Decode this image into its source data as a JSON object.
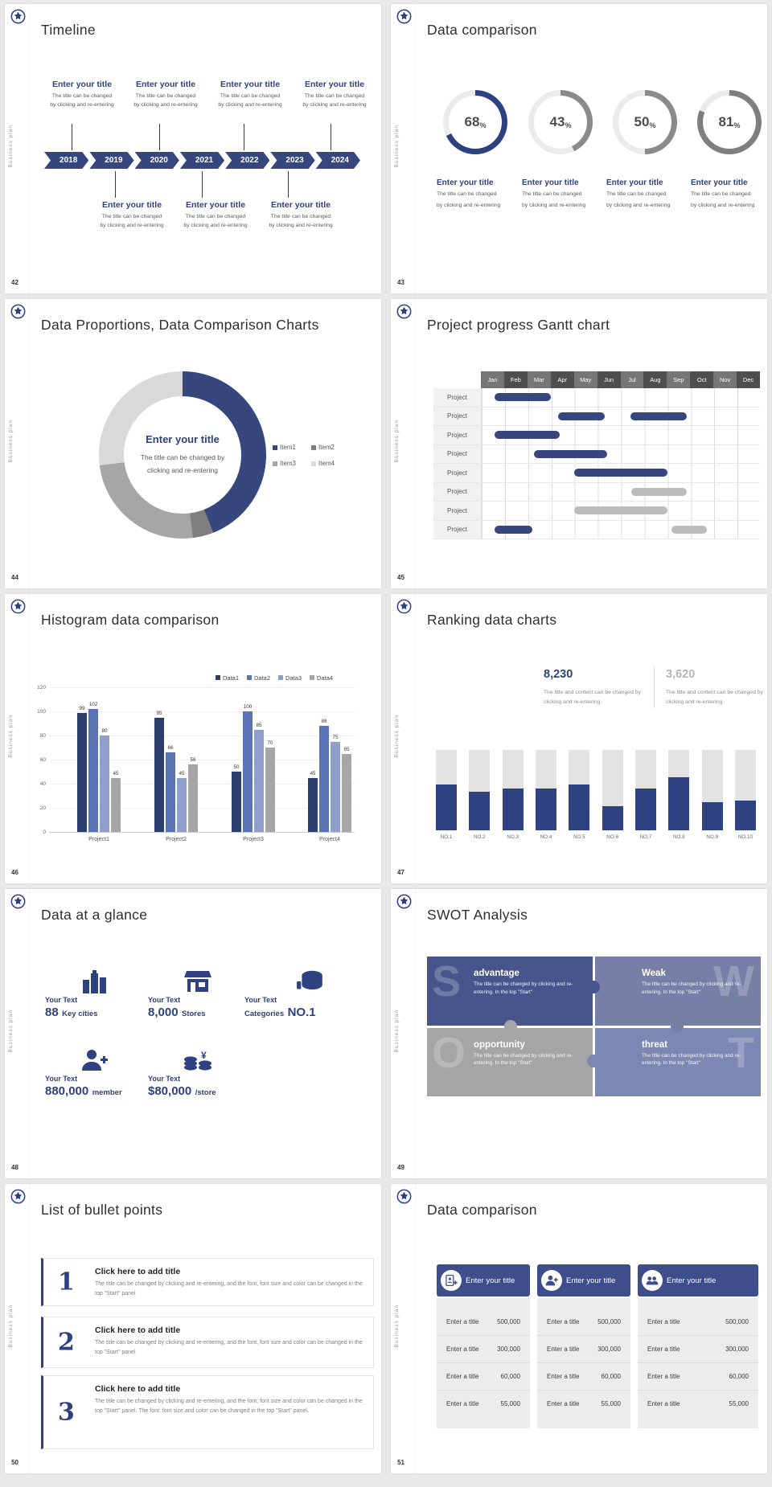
{
  "brand": {
    "vertical_label": "Business plan",
    "accent_color": "#2e4180",
    "logo_icon": "crest-badge-icon"
  },
  "shared": {
    "placeholder_title": "Enter your title",
    "placeholder_desc_l1": "The title can be changed",
    "placeholder_desc_l2": "by clicking and re-entering"
  },
  "slides": {
    "timeline": {
      "number": "42",
      "title": "Timeline",
      "years": [
        "2018",
        "2019",
        "2020",
        "2021",
        "2022",
        "2023",
        "2024"
      ]
    },
    "rings": {
      "number": "43",
      "title": "Data comparison"
    },
    "donut": {
      "number": "44",
      "title": "Data Proportions, Data Comparison Charts",
      "center_title": "Enter your title",
      "center_desc": "The title can be changed by clicking and re-entering"
    },
    "gantt": {
      "number": "45",
      "title": "Project progress Gantt chart"
    },
    "histogram": {
      "number": "46",
      "title": "Histogram data comparison"
    },
    "ranking": {
      "number": "47",
      "title": "Ranking data charts",
      "value_left": "8,230",
      "value_right": "3,620",
      "desc": "The title and content can be changed by clicking and re-entering"
    },
    "glance": {
      "number": "48",
      "title": "Data at a glance",
      "label": "Your Text",
      "stats": [
        {
          "big": "88",
          "small": "Key cities",
          "icon": "city-buildings-icon"
        },
        {
          "big": "8,000",
          "small": "Stores",
          "icon": "store-icon"
        },
        {
          "small_pre": "Categories",
          "big": "NO.1",
          "icon": "categories-cylinder-icon"
        },
        {
          "big": "880,000",
          "small": "member",
          "icon": "member-person-icon"
        },
        {
          "big": "$80,000",
          "small": "/store",
          "icon": "money-coins-icon"
        }
      ]
    },
    "swot": {
      "number": "49",
      "title": "SWOT Analysis",
      "quadrants": [
        {
          "letter": "S",
          "title": "advantage",
          "desc": "The title can be changed by clicking and re-entering. In the top \"Start\"",
          "color": "#46568c"
        },
        {
          "letter": "W",
          "title": "Weak",
          "desc": "The title can be changed by clicking and re-entering. In the top \"Start\"",
          "color": "#767fa6"
        },
        {
          "letter": "O",
          "title": "opportunity",
          "desc": "The title can be changed by clicking and re-entering. In the top \"Start\"",
          "color": "#a5a5a7"
        },
        {
          "letter": "T",
          "title": "threat",
          "desc": "The title can be changed by clicking and re-entering. In the top \"Start\"",
          "color": "#7d87b4"
        }
      ]
    },
    "bullets": {
      "number": "50",
      "title": "List of bullet points",
      "item_title": "Click here to add title",
      "items": [
        {
          "num": "1",
          "desc": "The title can be changed by clicking and re-entering, and the font, font size and color can be changed in the top \"Start\" panel"
        },
        {
          "num": "2",
          "desc": "The title can be changed by clicking and re-entering, and the font, font size and color can be changed in the top \"Start\" panel"
        },
        {
          "num": "3",
          "desc": "The title can be changed by clicking and re-entering, and the font, font size and color can be changed in the top \"Start\" panel. The font, font size and color can be changed in the top \"Start\" panel."
        }
      ]
    },
    "tables": {
      "number": "51",
      "title": "Data comparison",
      "header": "Enter your title",
      "row_label": "Enter a title",
      "values": [
        "500,000",
        "300,000",
        "60,000",
        "55,000"
      ],
      "icons": [
        "id-card-person-icon",
        "person-add-icon",
        "people-group-icon"
      ]
    }
  },
  "chart_data": [
    {
      "type": "pie",
      "subtype": "percent-rings",
      "title": "Data comparison",
      "values": [
        68,
        43,
        50,
        81
      ],
      "unit": "%",
      "colors": [
        "#2e4180",
        "#8a8a8a",
        "#8a8a8a",
        "#7f7f7f"
      ],
      "track": "#ebebeb",
      "label_each": "Enter your title"
    },
    {
      "type": "pie",
      "subtype": "donut",
      "title": "Data Proportions, Data Comparison Charts",
      "labels": [
        "Item1",
        "Item2",
        "Item3",
        "Item4"
      ],
      "values": [
        44,
        4,
        25,
        27
      ],
      "colors": [
        "#35477d",
        "#7f7f7f",
        "#a6a6a6",
        "#d9d9d9"
      ],
      "legend_position": "right"
    },
    {
      "type": "bar",
      "subtype": "gantt",
      "title": "Project progress Gantt chart",
      "x_categories": [
        "Jan",
        "Feb",
        "Mar",
        "Apr",
        "May",
        "Jun",
        "Jul",
        "Aug",
        "Sep",
        "Oct",
        "Nov",
        "Dec"
      ],
      "x_unit": "month",
      "rows": [
        {
          "label": "Project",
          "bars": [
            {
              "start": 0.55,
              "end": 3.0,
              "color": "navy"
            }
          ]
        },
        {
          "label": "Project",
          "bars": [
            {
              "start": 3.3,
              "end": 5.3,
              "color": "navy"
            },
            {
              "start": 6.4,
              "end": 8.85,
              "color": "navy"
            }
          ]
        },
        {
          "label": "Project",
          "bars": [
            {
              "start": 0.55,
              "end": 3.35,
              "color": "navy"
            }
          ]
        },
        {
          "label": "Project",
          "bars": [
            {
              "start": 2.25,
              "end": 5.4,
              "color": "navy"
            }
          ]
        },
        {
          "label": "Project",
          "bars": [
            {
              "start": 4.0,
              "end": 8.0,
              "color": "navy"
            }
          ]
        },
        {
          "label": "Project",
          "bars": [
            {
              "start": 6.45,
              "end": 8.85,
              "color": "gray"
            }
          ]
        },
        {
          "label": "Project",
          "bars": [
            {
              "start": 4.0,
              "end": 8.0,
              "color": "gray"
            }
          ]
        },
        {
          "label": "Project",
          "bars": [
            {
              "start": 0.55,
              "end": 2.2,
              "color": "navy"
            },
            {
              "start": 8.2,
              "end": 9.7,
              "color": "gray"
            }
          ]
        }
      ]
    },
    {
      "type": "bar",
      "subtype": "grouped-histogram",
      "title": "Histogram data comparison",
      "categories": [
        "Project1",
        "Project2",
        "Project3",
        "Project4"
      ],
      "series": [
        {
          "name": "Data1",
          "color": "#2c3e6e",
          "values": [
            99,
            95,
            50,
            45
          ]
        },
        {
          "name": "Data2",
          "color": "#5a74b4",
          "values": [
            102,
            66,
            100,
            88
          ]
        },
        {
          "name": "Data3",
          "color": "#8e9fca",
          "values": [
            80,
            45,
            85,
            75
          ]
        },
        {
          "name": "Data4",
          "color": "#a6a6a6",
          "values": [
            45,
            56,
            70,
            65
          ]
        }
      ],
      "ylim": [
        0,
        120
      ],
      "yticks": [
        0,
        20,
        40,
        60,
        80,
        100,
        120
      ],
      "grid": true,
      "legend_position": "top-right"
    },
    {
      "type": "bar",
      "subtype": "ranking",
      "title": "Ranking data charts",
      "categories": [
        "NO.1",
        "NO.2",
        "NO.3",
        "NO.4",
        "NO.5",
        "NO.6",
        "NO.7",
        "NO.8",
        "NO.9",
        "NO.10"
      ],
      "values": [
        57,
        48,
        52,
        52,
        57,
        30,
        52,
        66,
        35,
        37
      ],
      "value_unit": "percent-of-track",
      "bar_color": "#2e4180",
      "track_color": "#e3e3e3",
      "highlight_value": "8,230",
      "secondary_value": "3,620"
    }
  ]
}
